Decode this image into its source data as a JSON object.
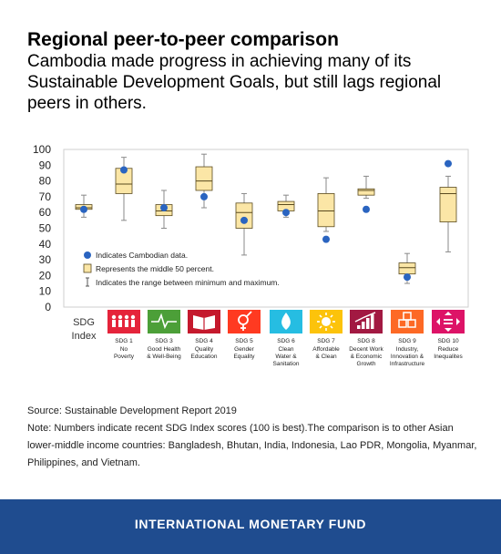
{
  "header": {
    "title": "Regional peer-to-peer comparison",
    "subtitle": "Cambodia made progress in achieving many of its Sustainable Development Goals, but still lags regional peers in others."
  },
  "chart_data": {
    "type": "box",
    "ylim": [
      0,
      100
    ],
    "yticks": [
      0,
      10,
      20,
      30,
      40,
      50,
      60,
      70,
      80,
      90,
      100
    ],
    "grid": false,
    "legend_position": "bottom-left",
    "legend": [
      {
        "symbol": "dot",
        "label": "Indicates Cambodian data."
      },
      {
        "symbol": "box",
        "label": "Represents the middle 50 percent."
      },
      {
        "symbol": "whisker",
        "label": "Indicates the range between minimum and maximum."
      }
    ],
    "colors": {
      "dot": "#2a64c0",
      "box_fill": "#fbe6a6",
      "box_stroke": "#5a4a1e",
      "whisker": "#8a8a8a"
    },
    "index_label": "SDG Index",
    "categories": [
      {
        "label": "SDG Index",
        "min": 57,
        "q1": 62,
        "median": 63,
        "q3": 65,
        "max": 71,
        "cambodia": 62
      },
      {
        "label": "SDG 1 No Poverty",
        "min": 55,
        "q1": 72,
        "median": 78,
        "q3": 88,
        "max": 95,
        "cambodia": 87
      },
      {
        "label": "SDG 3 Good Health & Well-Being",
        "min": 50,
        "q1": 58,
        "median": 61,
        "q3": 65,
        "max": 74,
        "cambodia": 63
      },
      {
        "label": "SDG 4 Quality Education",
        "min": 63,
        "q1": 74,
        "median": 80,
        "q3": 89,
        "max": 97,
        "cambodia": 70
      },
      {
        "label": "SDG 5 Gender Equality",
        "min": 33,
        "q1": 50,
        "median": 60,
        "q3": 66,
        "max": 72,
        "cambodia": 55
      },
      {
        "label": "SDG 6 Clean Water & Sanitation",
        "min": 57,
        "q1": 61,
        "median": 65,
        "q3": 67,
        "max": 71,
        "cambodia": 60
      },
      {
        "label": "SDG 7 Affordable & Clean",
        "min": 48,
        "q1": 51,
        "median": 61,
        "q3": 72,
        "max": 82,
        "cambodia": 43
      },
      {
        "label": "SDG 8 Decent Work & Economic Growth",
        "min": 69,
        "q1": 71,
        "median": 74,
        "q3": 75,
        "max": 83,
        "cambodia": 62
      },
      {
        "label": "SDG 9 Industry, Innovation & Infrastructure",
        "min": 15,
        "q1": 21,
        "median": 25,
        "q3": 28,
        "max": 34,
        "cambodia": 19
      },
      {
        "label": "SDG 10 Reduce Inequalites",
        "min": 35,
        "q1": 54,
        "median": 72,
        "q3": 76,
        "max": 83,
        "cambodia": 91
      }
    ]
  },
  "icons": [
    {
      "num": "SDG 1",
      "lines": [
        "No",
        "Poverty"
      ],
      "color": "#e5243b",
      "icon": "people-icon"
    },
    {
      "num": "SDG 3",
      "lines": [
        "Good Health",
        "& Well-Being"
      ],
      "color": "#4c9f38",
      "icon": "heartbeat-icon"
    },
    {
      "num": "SDG 4",
      "lines": [
        "Quality",
        "Education"
      ],
      "color": "#c5192d",
      "icon": "book-icon"
    },
    {
      "num": "SDG 5",
      "lines": [
        "Gender",
        "Equality"
      ],
      "color": "#ff3a21",
      "icon": "gender-icon"
    },
    {
      "num": "SDG 6",
      "lines": [
        "Clean",
        "Water &",
        "Sanitation"
      ],
      "color": "#26bde2",
      "icon": "water-drop-icon"
    },
    {
      "num": "SDG 7",
      "lines": [
        "Affordable",
        "& Clean"
      ],
      "color": "#fcc30b",
      "icon": "sun-icon"
    },
    {
      "num": "SDG 8",
      "lines": [
        "Decent Work",
        "& Economic",
        "Growth"
      ],
      "color": "#a21942",
      "icon": "growth-chart-icon"
    },
    {
      "num": "SDG 9",
      "lines": [
        "Industry,",
        "Innovation &",
        "Infrastructure"
      ],
      "color": "#fd6925",
      "icon": "cubes-icon"
    },
    {
      "num": "SDG 10",
      "lines": [
        "Reduce",
        "Inequalites"
      ],
      "color": "#dd1367",
      "icon": "equality-arrows-icon"
    }
  ],
  "notes": {
    "source": "Source: Sustainable Development Report 2019",
    "note": "Note:  Numbers indicate recent SDG Index scores (100 is best).The comparison is to other Asian lower-middle income countries: Bangladesh, Bhutan, India, Indonesia, Lao PDR, Mongolia, Myanmar, Philippines, and Vietnam."
  },
  "footer": {
    "org": "INTERNATIONAL MONETARY FUND"
  }
}
